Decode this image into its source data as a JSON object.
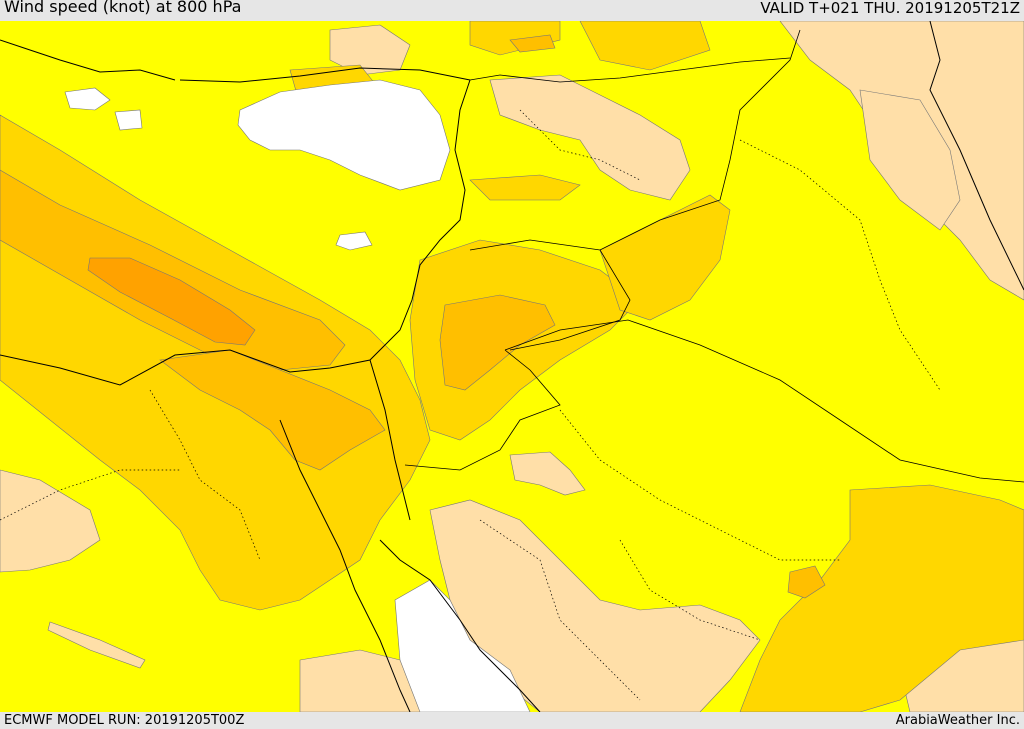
{
  "header": {
    "title": "Wind speed (knot) at 800 hPa",
    "valid": "VALID T+021 THU. 20191205T21Z"
  },
  "footer": {
    "model_run": "ECMWF MODEL RUN: 20191205T00Z",
    "credit": "ArabiaWeather Inc."
  },
  "colors": {
    "light_band": "#ffdfa8",
    "yellow_band": "#ffff00",
    "gold_band": "#ffd700",
    "amber_band": "#ffbf00",
    "orange_band": "#ffa200",
    "calm_band": "#ffffff",
    "border": "#000000"
  }
}
